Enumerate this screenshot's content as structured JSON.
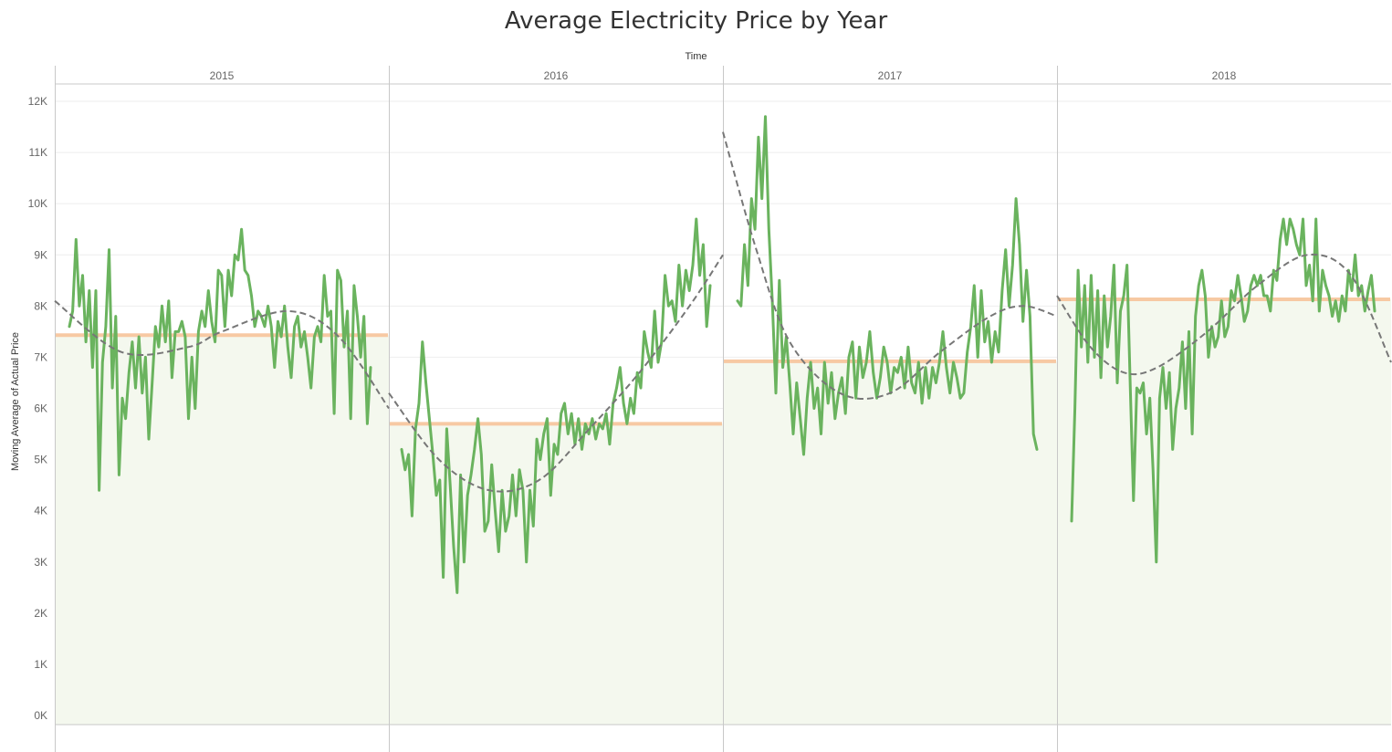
{
  "title": "Average Electricity Price by Year",
  "column_header": "Time",
  "y_axis_label": "Moving Average of Actual Price",
  "colors": {
    "line": "#6ab35e",
    "trend": "#777777",
    "average": "#f7c9a3",
    "fill": "#f4f8ee",
    "grid": "#eeeeee",
    "divider": "#c8c8c8"
  },
  "chart_data": {
    "type": "line",
    "title": "Average Electricity Price by Year",
    "xlabel": "Time",
    "ylabel": "Moving Average of Actual Price",
    "ylim": [
      0,
      12000
    ],
    "y_ticks": [
      "0K",
      "1K",
      "2K",
      "3K",
      "4K",
      "5K",
      "6K",
      "7K",
      "8K",
      "9K",
      "10K",
      "11K",
      "12K"
    ],
    "panels": [
      "2015",
      "2016",
      "2017",
      "2018"
    ],
    "series": [
      {
        "panel": "2015",
        "values": [
          7600,
          7900,
          9300,
          8000,
          8600,
          7300,
          8300,
          6800,
          8300,
          4400,
          6900,
          7600,
          9100,
          6400,
          7800,
          4700,
          6200,
          5800,
          6700,
          7300,
          6400,
          7400,
          6300,
          7000,
          5400,
          6500,
          7600,
          7200,
          8000,
          7300,
          8100,
          6600,
          7500,
          7500,
          7700,
          7400,
          5800,
          7000,
          6000,
          7500,
          7900,
          7600,
          8300,
          7700,
          7300,
          8700,
          8600,
          7600,
          8700,
          8200,
          9000,
          8900,
          9500,
          8700,
          8600,
          8200,
          7600,
          7900,
          7800,
          7600,
          8000,
          7600,
          6800,
          7700,
          7400,
          8000,
          7200,
          6600,
          7600,
          7800,
          7200,
          7500,
          7000,
          6400,
          7400,
          7600,
          7300,
          8600,
          7800,
          7900,
          5900,
          8700,
          8500,
          7200,
          7900,
          5800,
          8400,
          7800,
          7000,
          7800,
          5700,
          6800
        ]
      },
      {
        "panel": "2016",
        "values": [
          5200,
          4800,
          5100,
          3900,
          5600,
          6100,
          7300,
          6500,
          5800,
          5100,
          4300,
          4600,
          2700,
          5600,
          4500,
          3300,
          2400,
          4700,
          3000,
          4300,
          4700,
          5200,
          5800,
          5100,
          3600,
          3800,
          4900,
          4000,
          3200,
          4400,
          3600,
          3900,
          4700,
          3900,
          4800,
          4400,
          3000,
          4400,
          3700,
          5400,
          5000,
          5500,
          5800,
          4300,
          5300,
          5100,
          5900,
          6100,
          5500,
          5900,
          5300,
          5800,
          5200,
          5700,
          5500,
          5800,
          5400,
          5700,
          5600,
          5900,
          5300,
          6100,
          6400,
          6800,
          6100,
          5700,
          6200,
          5900,
          6700,
          6400,
          7500,
          7100,
          6800,
          7900,
          6900,
          7300,
          8600,
          8000,
          8100,
          7700,
          8800,
          8000,
          8700,
          8300,
          8800,
          9700,
          8600,
          9200,
          7600,
          8400
        ]
      },
      {
        "panel": "2017",
        "values": [
          8100,
          8000,
          9200,
          8400,
          10100,
          9500,
          11300,
          10100,
          11700,
          9500,
          8100,
          6300,
          8500,
          6800,
          7400,
          6500,
          5500,
          6500,
          5800,
          5100,
          6200,
          6900,
          6000,
          6400,
          5500,
          6900,
          6100,
          6700,
          5800,
          6300,
          6600,
          5900,
          7000,
          7300,
          6200,
          7200,
          6600,
          6900,
          7500,
          6700,
          6200,
          6600,
          7200,
          6900,
          6300,
          6800,
          6700,
          7000,
          6400,
          7200,
          6500,
          6300,
          6900,
          6100,
          6800,
          6200,
          6800,
          6500,
          6900,
          7500,
          6800,
          6300,
          6900,
          6600,
          6200,
          6300,
          7100,
          7600,
          8400,
          7000,
          8300,
          7300,
          7700,
          6900,
          7500,
          7100,
          8300,
          9100,
          8000,
          8800,
          10100,
          9200,
          7700,
          8700,
          7800,
          5500,
          5200
        ]
      },
      {
        "panel": "2018",
        "values": [
          3800,
          6000,
          8700,
          7200,
          8400,
          6900,
          8600,
          7000,
          8300,
          6600,
          8200,
          7200,
          7800,
          8800,
          6500,
          7900,
          8200,
          8800,
          6400,
          4200,
          6400,
          6300,
          6500,
          5500,
          6200,
          4800,
          3000,
          6200,
          6800,
          6000,
          6700,
          5200,
          6000,
          6400,
          7300,
          6000,
          7500,
          5500,
          7800,
          8400,
          8700,
          8200,
          7000,
          7600,
          7200,
          7400,
          8100,
          7400,
          7600,
          8300,
          8100,
          8600,
          8200,
          7700,
          7900,
          8400,
          8600,
          8400,
          8600,
          8200,
          8200,
          7900,
          8700,
          8500,
          9300,
          9700,
          9200,
          9700,
          9500,
          9200,
          9000,
          9700,
          8400,
          8800,
          8100,
          9700,
          7900,
          8700,
          8400,
          8200,
          7800,
          8100,
          7700,
          8200,
          7900,
          8700,
          8300,
          9000,
          8200,
          8400,
          7900,
          8300,
          8600,
          7900
        ]
      }
    ],
    "averages": [
      {
        "panel": "2015",
        "value": 7430
      },
      {
        "panel": "2016",
        "value": 5700
      },
      {
        "panel": "2017",
        "value": 6920
      },
      {
        "panel": "2018",
        "value": 8130
      }
    ],
    "trend_lines": [
      {
        "panel": "2015",
        "x": [
          0,
          0.2,
          0.4,
          0.5,
          0.7,
          0.85,
          1.0
        ],
        "y": [
          8100,
          7100,
          7200,
          7500,
          7900,
          7400,
          6000
        ]
      },
      {
        "panel": "2016",
        "x": [
          0,
          0.15,
          0.3,
          0.45,
          0.6,
          0.75,
          0.9,
          1.0
        ],
        "y": [
          6300,
          5000,
          4400,
          4600,
          5600,
          6700,
          8000,
          9000
        ]
      },
      {
        "panel": "2017",
        "x": [
          0,
          0.1,
          0.2,
          0.35,
          0.5,
          0.65,
          0.8,
          0.9,
          1.0
        ],
        "y": [
          11400,
          9100,
          7300,
          6300,
          6300,
          7100,
          7800,
          8000,
          7800
        ]
      },
      {
        "panel": "2018",
        "x": [
          0,
          0.1,
          0.2,
          0.3,
          0.45,
          0.6,
          0.75,
          0.88,
          1.0
        ],
        "y": [
          8200,
          7200,
          6700,
          6800,
          7500,
          8400,
          9000,
          8600,
          6900
        ]
      }
    ],
    "grid": true,
    "legend": "none"
  }
}
